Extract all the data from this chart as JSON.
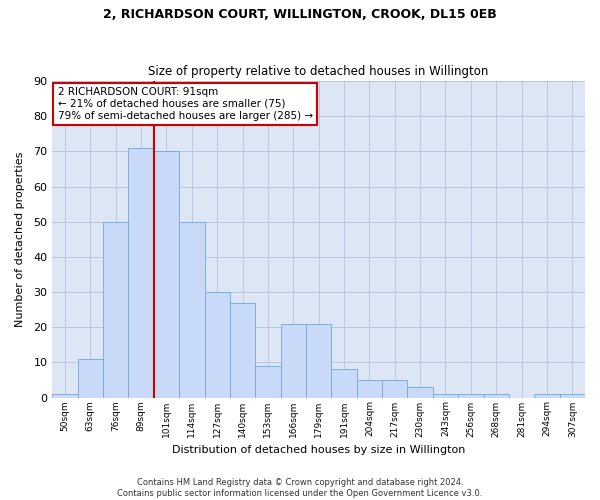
{
  "title": "2, RICHARDSON COURT, WILLINGTON, CROOK, DL15 0EB",
  "subtitle": "Size of property relative to detached houses in Willington",
  "xlabel": "Distribution of detached houses by size in Willington",
  "ylabel": "Number of detached properties",
  "bin_labels": [
    "50sqm",
    "63sqm",
    "76sqm",
    "89sqm",
    "101sqm",
    "114sqm",
    "127sqm",
    "140sqm",
    "153sqm",
    "166sqm",
    "179sqm",
    "191sqm",
    "204sqm",
    "217sqm",
    "230sqm",
    "243sqm",
    "256sqm",
    "268sqm",
    "281sqm",
    "294sqm",
    "307sqm"
  ],
  "bar_values": [
    1,
    11,
    50,
    71,
    70,
    50,
    30,
    27,
    9,
    21,
    21,
    8,
    5,
    5,
    3,
    1,
    1,
    1,
    0,
    1,
    1
  ],
  "bar_color": "#c9daf8",
  "bar_edge_color": "#6fa8dc",
  "vline_x_idx": 3.5,
  "vline_color": "#cc0000",
  "annotation_text": "2 RICHARDSON COURT: 91sqm\n← 21% of detached houses are smaller (75)\n79% of semi-detached houses are larger (285) →",
  "annotation_box_color": "#ffffff",
  "annotation_box_edge": "#cc0000",
  "plot_bg_color": "#dce6f5",
  "fig_bg_color": "#ffffff",
  "grid_color": "#b8c8e0",
  "footer": "Contains HM Land Registry data © Crown copyright and database right 2024.\nContains public sector information licensed under the Open Government Licence v3.0.",
  "ylim": [
    0,
    90
  ],
  "yticks": [
    0,
    10,
    20,
    30,
    40,
    50,
    60,
    70,
    80,
    90
  ]
}
